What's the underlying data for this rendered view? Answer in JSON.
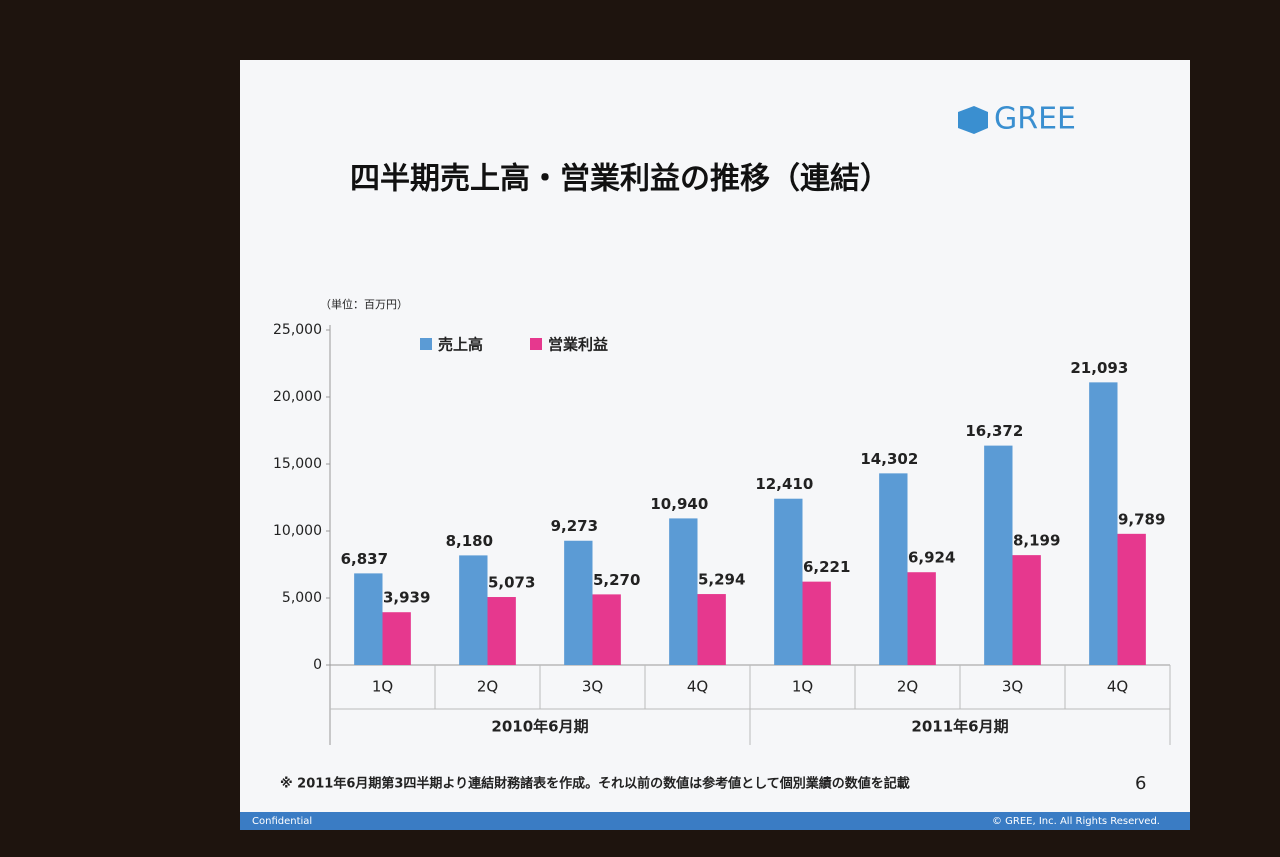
{
  "header": {
    "logo": "GREE",
    "page_number": "6",
    "confidential": "Confidential",
    "copyright": "© GREE, Inc. All Rights Reserved."
  },
  "footnote": "※ 2011年6月期第3四半期より連結財務諸表を作成。それ以前の数値は参考値として個別業績の数値を記載",
  "chart_data": {
    "type": "bar",
    "title": "四半期売上高・営業利益の推移（連結）",
    "y_unit": "（単位：百万円）",
    "categories": [
      "1Q",
      "2Q",
      "3Q",
      "4Q",
      "1Q",
      "2Q",
      "3Q",
      "4Q"
    ],
    "category_groups": [
      "2010年6月期",
      "2011年6月期"
    ],
    "series": [
      {
        "name": "売上高",
        "color": "#5b9bd5",
        "values": [
          6837,
          8180,
          9273,
          10940,
          12410,
          14302,
          16372,
          21093
        ],
        "value_labels": [
          "6,837",
          "8,180",
          "9,273",
          "10,940",
          "12,410",
          "14,302",
          "16,372",
          "21,093"
        ]
      },
      {
        "name": "営業利益",
        "color": "#e6388e",
        "values": [
          3939,
          5073,
          5270,
          5294,
          6221,
          6924,
          8199,
          9789
        ],
        "value_labels": [
          "3,939",
          "5,073",
          "5,270",
          "5,294",
          "6,221",
          "6,924",
          "8,199",
          "9,789"
        ]
      }
    ],
    "ylim": [
      0,
      25000
    ],
    "yticks": [
      0,
      {
        "value": 5000,
        "label": "5,000"
      },
      {
        "value": 10000,
        "label": "10,000"
      },
      {
        "value": 15000,
        "label": "15,000"
      },
      {
        "value": 20000,
        "label": "20,000"
      },
      {
        "value": 25000,
        "label": "25,000"
      }
    ],
    "grid": false,
    "legend": "top"
  }
}
